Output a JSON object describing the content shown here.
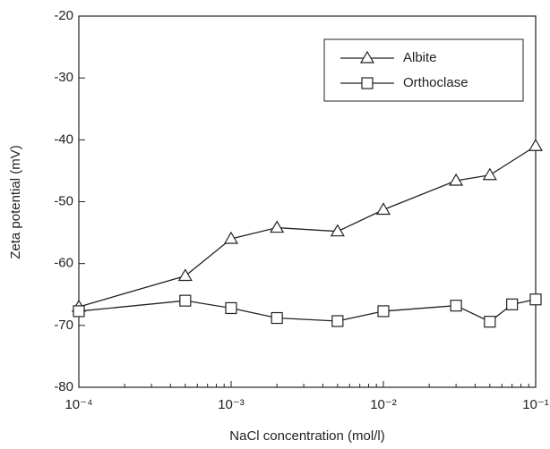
{
  "chart_data": {
    "type": "line",
    "xlabel": "NaCl concentration (mol/l)",
    "ylabel": "Zeta potential (mV)",
    "xscale": "log",
    "xlim": [
      0.0001,
      0.1
    ],
    "xticks": [
      {
        "value": 0.0001,
        "label": "10⁻⁴"
      },
      {
        "value": 0.001,
        "label": "10⁻³"
      },
      {
        "value": 0.01,
        "label": "10⁻²"
      },
      {
        "value": 0.1,
        "label": "10⁻¹"
      }
    ],
    "ylim": [
      -80,
      -20
    ],
    "yticks": [
      -80,
      -70,
      -60,
      -50,
      -40,
      -30,
      -20
    ],
    "legend": "upper right",
    "series": [
      {
        "name": "Albite",
        "color": "#222222",
        "marker": "triangle",
        "x": [
          0.0001,
          0.0005,
          0.001,
          0.002,
          0.005,
          0.01,
          0.03,
          0.05,
          0.1
        ],
        "values": [
          -67,
          -62,
          -56,
          -54.2,
          -54.8,
          -51.3,
          -46.6,
          -45.7,
          -41
        ]
      },
      {
        "name": "Orthoclase",
        "color": "#222222",
        "marker": "square",
        "x": [
          0.0001,
          0.0005,
          0.001,
          0.002,
          0.005,
          0.01,
          0.03,
          0.05,
          0.07,
          0.1
        ],
        "values": [
          -67.7,
          -66,
          -67.2,
          -68.8,
          -69.3,
          -67.7,
          -66.8,
          -69.4,
          -66.6,
          -65.8
        ]
      }
    ]
  }
}
